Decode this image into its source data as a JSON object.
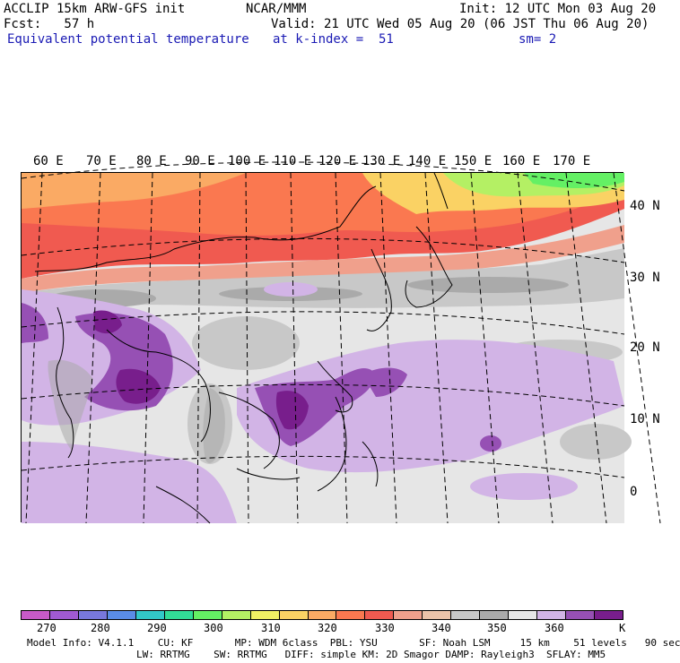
{
  "header": {
    "line1_left": "ACCLIP 15km ARW-GFS init",
    "line1_mid": "NCAR/MMM",
    "line1_right": "Init: 12 UTC Mon 03 Aug 20",
    "line2_left": "Fcst:   57 h",
    "line2_right": "Valid: 21 UTC Wed 05 Aug 20 (06 JST Thu 06 Aug 20)",
    "line3_left": "Equivalent potential temperature",
    "line3_mid": "at k-index =  51",
    "line3_right": "sm= 2"
  },
  "map": {
    "longitude_labels": [
      "60 E",
      "70 E",
      "80 E",
      "90 E",
      "100 E",
      "110 E",
      "120 E",
      "130 E",
      "140 E",
      "150 E",
      "160 E",
      "170 E"
    ],
    "latitude_labels": [
      "40 N",
      "30 N",
      "20 N",
      "10 N",
      "0"
    ]
  },
  "colorbar": {
    "unit": "K",
    "tick_labels": [
      "270",
      "280",
      "290",
      "300",
      "310",
      "320",
      "330",
      "340",
      "350",
      "360"
    ],
    "colors": [
      "#c85ac8",
      "#a05ad2",
      "#7878dc",
      "#5a8ce6",
      "#32c8c8",
      "#32dc96",
      "#64f064",
      "#b4f064",
      "#f0f064",
      "#fad264",
      "#faaa64",
      "#fa7850",
      "#f05a50",
      "#f0a08c",
      "#ebc3aa",
      "#c8c8c8",
      "#aaaaaa",
      "#e6e6e6",
      "#d2b4e6",
      "#9650b4",
      "#781e8c"
    ]
  },
  "footer": {
    "line1": "Model Info: V4.1.1    CU: KF       MP: WDM 6class  PBL: YSU       SF: Noah LSM     15 km    51 levels   90 sec",
    "line2": "LW: RRTMG    SW: RRTMG   DIFF: simple KM: 2D Smagor DAMP: Rayleigh3  SFLAY: MM5"
  }
}
